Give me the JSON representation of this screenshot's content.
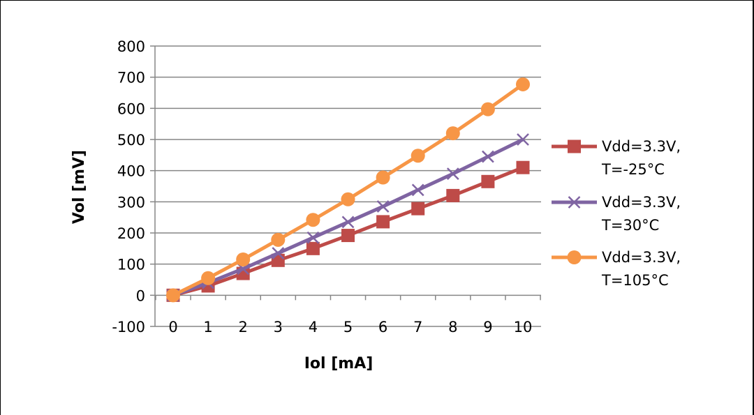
{
  "title": "",
  "chart_data": {
    "type": "line",
    "title": "",
    "xlabel": "Iol [mA]",
    "ylabel": "Vol [mV]",
    "x": [
      0,
      1,
      2,
      3,
      4,
      5,
      6,
      7,
      8,
      9,
      10
    ],
    "xlim": [
      0,
      10
    ],
    "ylim": [
      -100,
      800
    ],
    "yticks": [
      -100,
      0,
      100,
      200,
      300,
      400,
      500,
      600,
      700,
      800
    ],
    "grid": "horizontal",
    "legend_position": "right",
    "series": [
      {
        "name_line1": "Vdd=3.3V,",
        "name_line2": "T=-25°C",
        "color": "#BE4B48",
        "marker": "square",
        "values": [
          0,
          30,
          70,
          112,
          150,
          192,
          236,
          278,
          320,
          365,
          410
        ]
      },
      {
        "name_line1": "Vdd=3.3V,",
        "name_line2": "T=30°C",
        "color": "#7F64A2",
        "marker": "x",
        "values": [
          0,
          40,
          85,
          135,
          185,
          235,
          285,
          338,
          390,
          445,
          500
        ]
      },
      {
        "name_line1": "Vdd=3.3V,",
        "name_line2": "T=105°C",
        "color": "#F79646",
        "marker": "circle",
        "values": [
          0,
          55,
          115,
          178,
          242,
          308,
          378,
          448,
          520,
          597,
          677
        ]
      }
    ]
  }
}
